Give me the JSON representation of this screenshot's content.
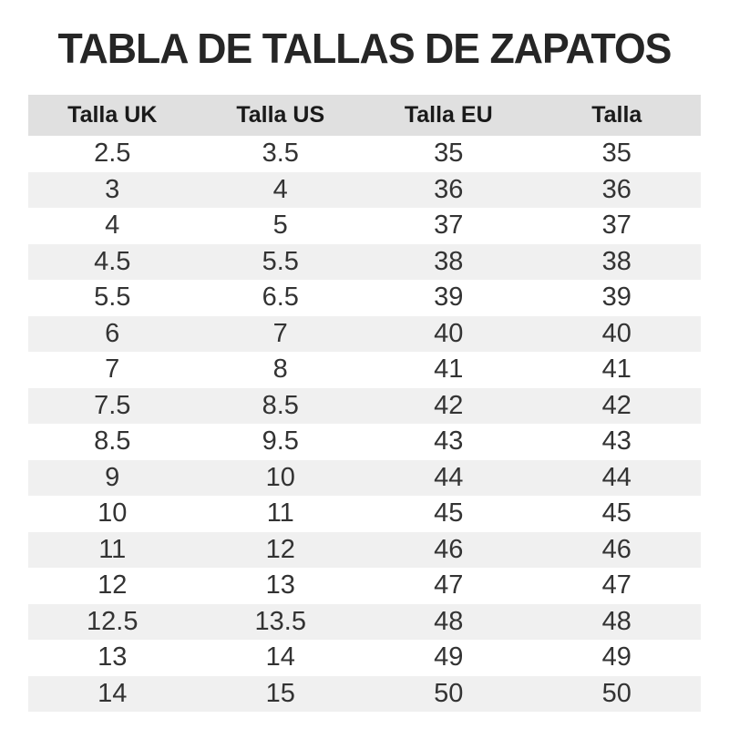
{
  "page": {
    "title": "TABLA DE TALLAS DE ZAPATOS"
  },
  "colors": {
    "background": "#ffffff",
    "title_text": "#262626",
    "header_bg": "#e0e0e0",
    "header_text": "#1a1a1a",
    "row_stripe_bg": "#f0f0f0",
    "cell_text": "#333333"
  },
  "table": {
    "columns": [
      "Talla UK",
      "Talla US",
      "Talla EU",
      "Talla"
    ],
    "rows": [
      [
        "2.5",
        "3.5",
        "35",
        "35"
      ],
      [
        "3",
        "4",
        "36",
        "36"
      ],
      [
        "4",
        "5",
        "37",
        "37"
      ],
      [
        "4.5",
        "5.5",
        "38",
        "38"
      ],
      [
        "5.5",
        "6.5",
        "39",
        "39"
      ],
      [
        "6",
        "7",
        "40",
        "40"
      ],
      [
        "7",
        "8",
        "41",
        "41"
      ],
      [
        "7.5",
        "8.5",
        "42",
        "42"
      ],
      [
        "8.5",
        "9.5",
        "43",
        "43"
      ],
      [
        "9",
        "10",
        "44",
        "44"
      ],
      [
        "10",
        "11",
        "45",
        "45"
      ],
      [
        "11",
        "12",
        "46",
        "46"
      ],
      [
        "12",
        "13",
        "47",
        "47"
      ],
      [
        "12.5",
        "13.5",
        "48",
        "48"
      ],
      [
        "13",
        "14",
        "49",
        "49"
      ],
      [
        "14",
        "15",
        "50",
        "50"
      ]
    ]
  },
  "chart_data": {
    "type": "table",
    "title": "TABLA DE TALLAS DE ZAPATOS",
    "columns": [
      "Talla UK",
      "Talla US",
      "Talla EU",
      "Talla"
    ],
    "rows": [
      [
        "2.5",
        "3.5",
        "35",
        "35"
      ],
      [
        "3",
        "4",
        "36",
        "36"
      ],
      [
        "4",
        "5",
        "37",
        "37"
      ],
      [
        "4.5",
        "5.5",
        "38",
        "38"
      ],
      [
        "5.5",
        "6.5",
        "39",
        "39"
      ],
      [
        "6",
        "7",
        "40",
        "40"
      ],
      [
        "7",
        "8",
        "41",
        "41"
      ],
      [
        "7.5",
        "8.5",
        "42",
        "42"
      ],
      [
        "8.5",
        "9.5",
        "43",
        "43"
      ],
      [
        "9",
        "10",
        "44",
        "44"
      ],
      [
        "10",
        "11",
        "45",
        "45"
      ],
      [
        "11",
        "12",
        "46",
        "46"
      ],
      [
        "12",
        "13",
        "47",
        "47"
      ],
      [
        "12.5",
        "13.5",
        "48",
        "48"
      ],
      [
        "13",
        "14",
        "49",
        "49"
      ],
      [
        "14",
        "15",
        "50",
        "50"
      ]
    ]
  }
}
